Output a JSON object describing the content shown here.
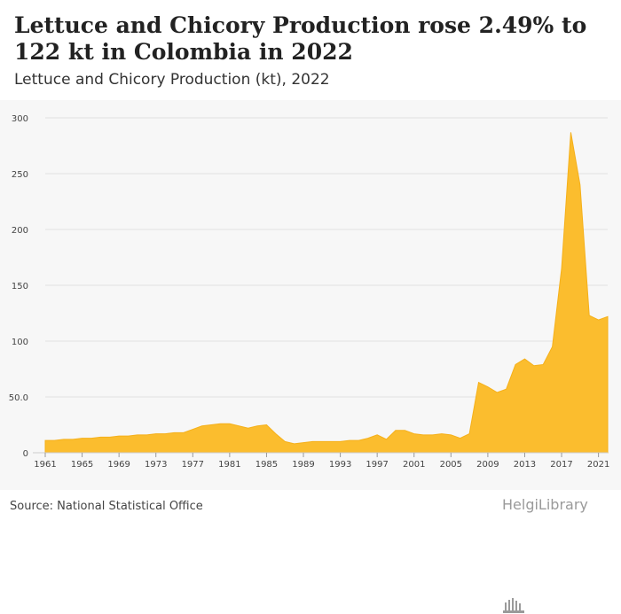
{
  "header": {
    "title": "Lettuce and Chicory Production rose 2.49% to 122 kt in Colombia in 2022",
    "subtitle": "Lettuce and Chicory Production (kt), 2022"
  },
  "footer": {
    "source": "Source: National Statistical Office",
    "logo_text": "HelgiLibrary"
  },
  "colors": {
    "area_fill": "#fbbd2e",
    "area_line": "#f5b01a",
    "grid": "#e2e2e2",
    "background": "#f7f7f7"
  },
  "chart_data": {
    "type": "area",
    "title": "Lettuce and Chicory Production (kt), 2022",
    "xlabel": "",
    "ylabel": "",
    "ylim": [
      0,
      300
    ],
    "yticks": [
      0,
      50,
      100,
      150,
      200,
      250,
      300
    ],
    "ytick_labels": [
      "0",
      "50.0",
      "100",
      "150",
      "200",
      "250",
      "300"
    ],
    "xticks": [
      1961,
      1965,
      1969,
      1973,
      1977,
      1981,
      1985,
      1989,
      1993,
      1997,
      2001,
      2005,
      2009,
      2013,
      2017,
      2021
    ],
    "grid": true,
    "x": [
      1961,
      1962,
      1963,
      1964,
      1965,
      1966,
      1967,
      1968,
      1969,
      1970,
      1971,
      1972,
      1973,
      1974,
      1975,
      1976,
      1977,
      1978,
      1979,
      1980,
      1981,
      1982,
      1983,
      1984,
      1985,
      1986,
      1987,
      1988,
      1989,
      1990,
      1991,
      1992,
      1993,
      1994,
      1995,
      1996,
      1997,
      1998,
      1999,
      2000,
      2001,
      2002,
      2003,
      2004,
      2005,
      2006,
      2007,
      2008,
      2009,
      2010,
      2011,
      2012,
      2013,
      2014,
      2015,
      2016,
      2017,
      2018,
      2019,
      2020,
      2021,
      2022
    ],
    "values": [
      11,
      11,
      12,
      12,
      13,
      13,
      14,
      14,
      15,
      15,
      16,
      16,
      17,
      17,
      18,
      18,
      21,
      24,
      25,
      26,
      26,
      24,
      22,
      24,
      25,
      17,
      10,
      8,
      9,
      10,
      10,
      10,
      10,
      11,
      11,
      13,
      16,
      12,
      20,
      20,
      17,
      16,
      16,
      17,
      16,
      13,
      17,
      63,
      59,
      54,
      57,
      79,
      84,
      78,
      79,
      95,
      165,
      287,
      240,
      123,
      119,
      122
    ]
  }
}
